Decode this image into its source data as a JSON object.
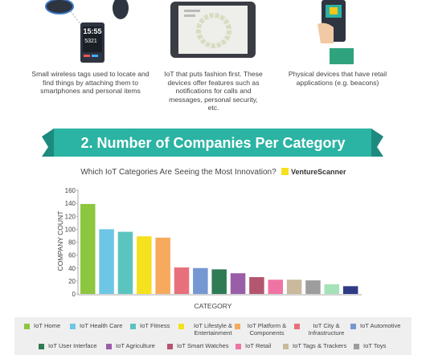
{
  "features": [
    {
      "description": "Small wireless tags used to locate and find things by attaching them to smartphones and personal items",
      "screen": [
        "15:55",
        "5321"
      ]
    },
    {
      "description": "IoT that puts fashion first. These devices offer features such as notifications for calls and messages, personal security, etc."
    },
    {
      "description": "Physical devices that have retail applications (e.g. beacons)"
    }
  ],
  "banner": "2. Number of Companies Per Category",
  "logo": "VentureScanner",
  "chart_data": {
    "type": "bar",
    "title": "Which IoT Categories Are Seeing the Most Innovation?",
    "x_label": "CATEGORY",
    "y_label": "COMPANY COUNT",
    "categories": [
      "IoT Home",
      "IoT Health Care",
      "IoT Fitness",
      "IoT Lifestyle & Entertainment",
      "IoT Platform & Components",
      "IoT City & Infrastructure",
      "IoT Automotive",
      "IoT User Interface",
      "IoT Agriculture",
      "IoT Smart Watches",
      "IoT Retail",
      "IoT Tags & Trackers",
      "IoT Toys",
      null,
      null
    ],
    "values": [
      139,
      100,
      96,
      89,
      87,
      41,
      40,
      38,
      32,
      26,
      22,
      22,
      21,
      15,
      12
    ],
    "colors": [
      "#8dc63f",
      "#6ec6e6",
      "#5cc4bf",
      "#f5e11d",
      "#f7a95d",
      "#e8707c",
      "#7598d2",
      "#2f7b55",
      "#9a5ea9",
      "#b3566f",
      "#f074a3",
      "#c9ba9b",
      "#9d9d9d",
      "#a6e2b8",
      "#2f3b87"
    ],
    "ylim": [
      0,
      160
    ],
    "yticks": [
      0,
      20,
      40,
      60,
      80,
      100,
      120,
      140,
      160
    ],
    "grid": false
  }
}
